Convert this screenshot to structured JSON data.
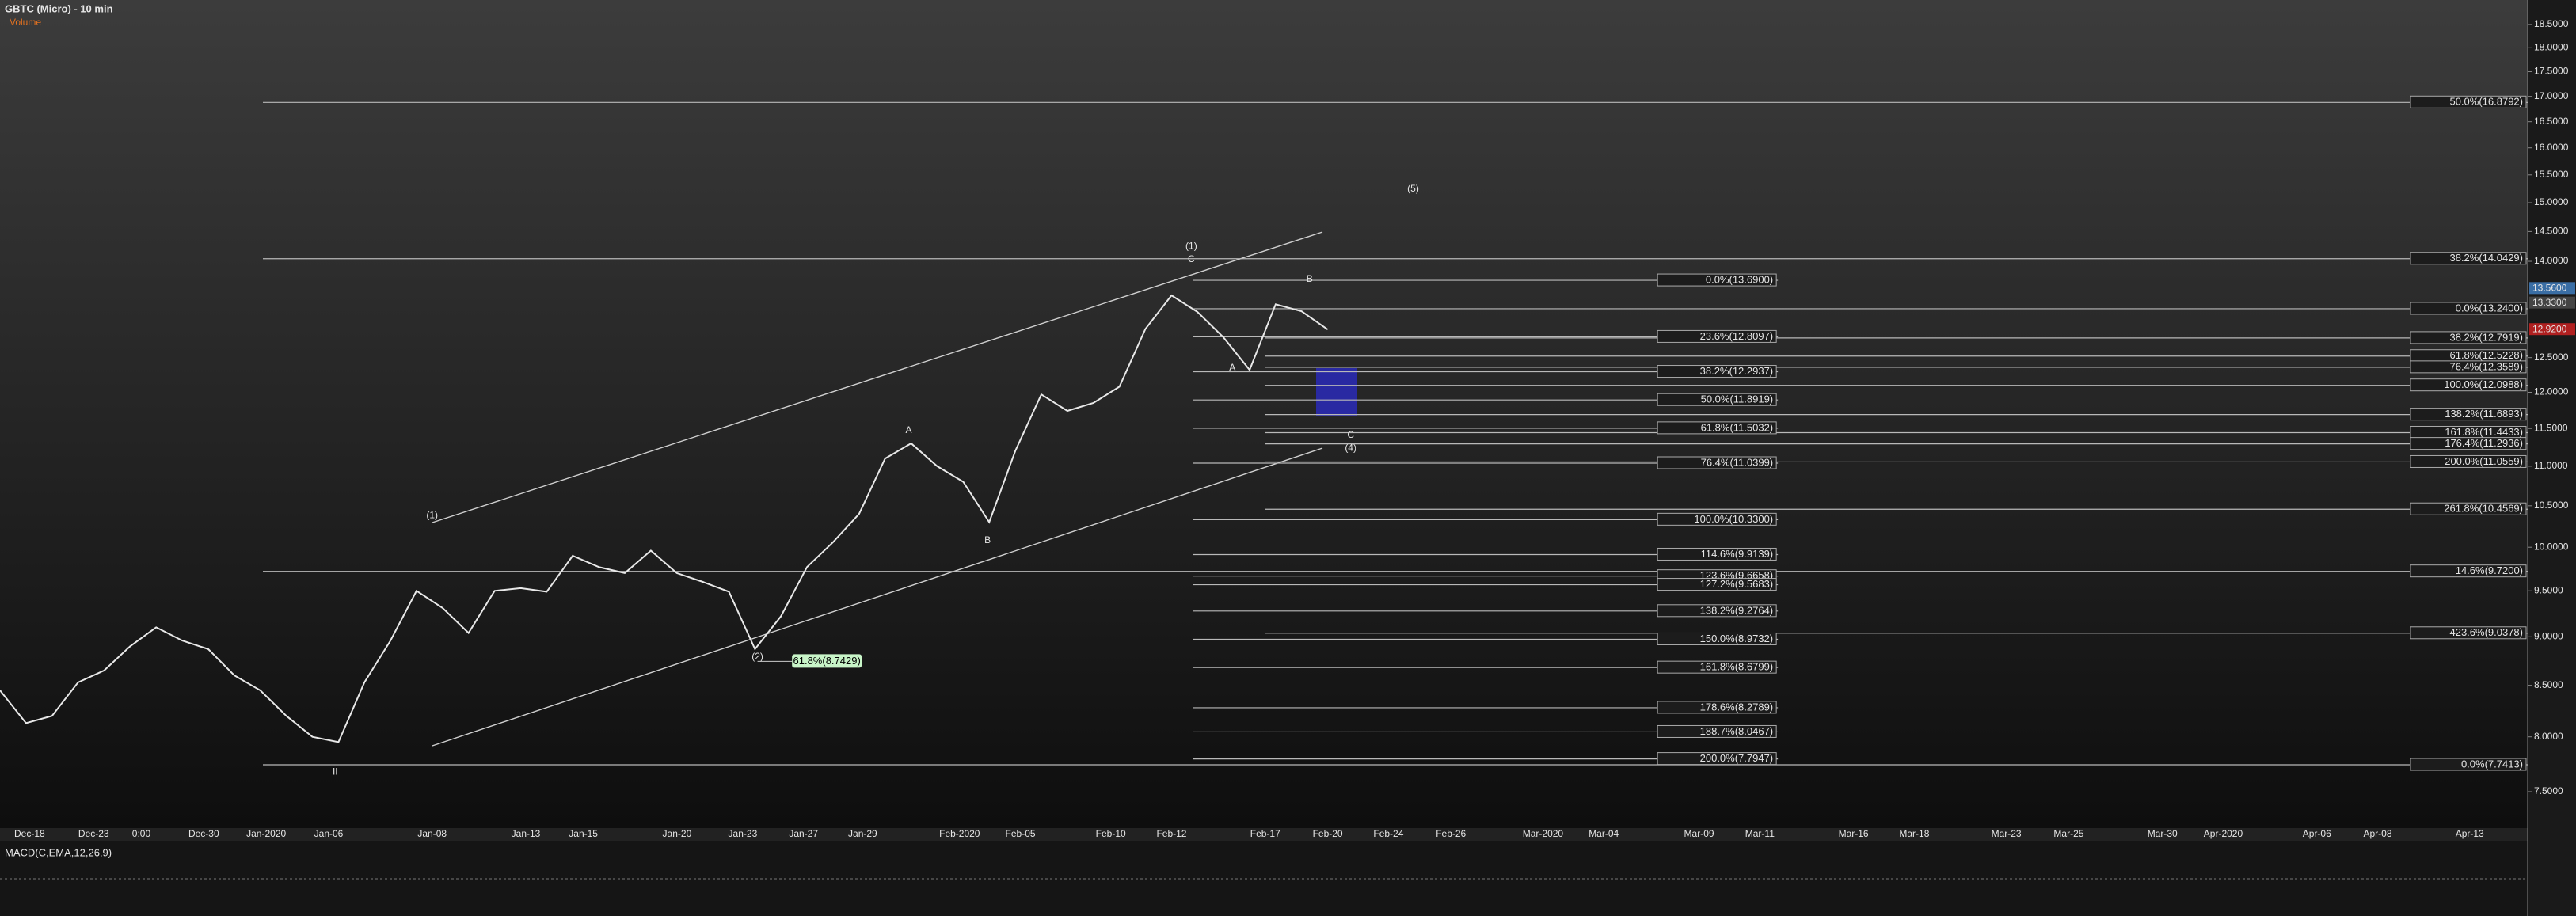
{
  "chart_data": {
    "type": "line",
    "title": "GBTC (Micro) - 10 min",
    "subtitle": "Volume",
    "macd_title": "MACD(C,EMA,12,26,9)",
    "log_scale": true,
    "ylim": [
      7.465,
      19.04
    ],
    "yticks": [
      {
        "value": 7.5,
        "label": "7.5000"
      },
      {
        "value": 8,
        "label": "8.0000"
      },
      {
        "value": 8.5,
        "label": "8.5000"
      },
      {
        "value": 9,
        "label": "9.0000"
      },
      {
        "value": 9.5,
        "label": "9.5000"
      },
      {
        "value": 10,
        "label": "10.0000"
      },
      {
        "value": 10.5,
        "label": "10.5000"
      },
      {
        "value": 11,
        "label": "11.0000"
      },
      {
        "value": 11.5,
        "label": "11.5000"
      },
      {
        "value": 12,
        "label": "12.0000"
      },
      {
        "value": 12.5,
        "label": "12.5000"
      },
      {
        "value": 14,
        "label": "14.0000"
      },
      {
        "value": 14.5,
        "label": "14.5000"
      },
      {
        "value": 15,
        "label": "15.0000"
      },
      {
        "value": 15.5,
        "label": "15.5000"
      },
      {
        "value": 16,
        "label": "16.0000"
      },
      {
        "value": 16.5,
        "label": "16.5000"
      },
      {
        "value": 17,
        "label": "17.0000"
      },
      {
        "value": 17.5,
        "label": "17.5000"
      },
      {
        "value": 18,
        "label": "18.0000"
      },
      {
        "value": 18.5,
        "label": "18.5000"
      }
    ],
    "x_labels": [
      "Dec-18",
      "Dec-23",
      "0:00",
      "Dec-30",
      "Jan-2020",
      "Jan-06",
      "Jan-08",
      "Jan-13",
      "Jan-15",
      "Jan-20",
      "Jan-23",
      "Jan-27",
      "Jan-29",
      "Feb-2020",
      "Feb-05",
      "Feb-10",
      "Feb-12",
      "Feb-17",
      "Feb-20",
      "Feb-24",
      "Feb-26",
      "Mar-2020",
      "Mar-04",
      "Mar-09",
      "Mar-11",
      "Mar-16",
      "Mar-18",
      "Mar-23",
      "Mar-25",
      "Mar-30",
      "Apr-2020",
      "Apr-06",
      "Apr-08",
      "Apr-13"
    ],
    "series": [
      {
        "name": "GBTC",
        "color": "#e8e8e8",
        "values": [
          8.45,
          8.13,
          8.2,
          8.53,
          8.65,
          8.9,
          9.1,
          8.96,
          8.87,
          8.6,
          8.45,
          8.2,
          8.0,
          7.95,
          8.53,
          8.96,
          9.5,
          9.31,
          9.04,
          9.5,
          9.53,
          9.49,
          9.9,
          9.77,
          9.7,
          9.96,
          9.7,
          9.6,
          9.49,
          8.87,
          9.22,
          9.77,
          10.06,
          10.4,
          11.1,
          11.3,
          11.0,
          10.8,
          10.3,
          11.2,
          11.97,
          11.74,
          11.85,
          12.08,
          12.93,
          13.45,
          13.19,
          12.8,
          12.32,
          13.31,
          13.2,
          12.92
        ]
      }
    ],
    "price_labels": [
      {
        "value": 13.56,
        "label": "13.5600"
      },
      {
        "value": 13.33,
        "label": "13.3300"
      },
      {
        "value": 12.92,
        "label": "12.9200"
      }
    ],
    "fib_right": [
      {
        "value": 16.8792,
        "label": "50.0%(16.8792)"
      },
      {
        "value": 14.0429,
        "label": "38.2%(14.0429)"
      },
      {
        "value": 13.24,
        "label": "0.0%(13.2400)"
      },
      {
        "value": 12.7919,
        "label": "38.2%(12.7919)"
      },
      {
        "value": 12.5228,
        "label": "61.8%(12.5228)"
      },
      {
        "value": 12.3589,
        "label": "76.4%(12.3589)"
      },
      {
        "value": 12.0988,
        "label": "100.0%(12.0988)"
      },
      {
        "value": 11.6893,
        "label": "138.2%(11.6893)"
      },
      {
        "value": 11.4433,
        "label": "161.8%(11.4433)"
      },
      {
        "value": 11.2936,
        "label": "176.4%(11.2936)"
      },
      {
        "value": 11.0559,
        "label": "200.0%(11.0559)"
      },
      {
        "value": 10.4569,
        "label": "261.8%(10.4569)"
      },
      {
        "value": 9.72,
        "label": "14.6%(9.7200)"
      },
      {
        "value": 9.0378,
        "label": "423.6%(9.0378)"
      },
      {
        "value": 7.7413,
        "label": "0.0%(7.7413)"
      }
    ],
    "fib_center": [
      {
        "value": 13.69,
        "label": "0.0%(13.6900)"
      },
      {
        "value": 12.8097,
        "label": "23.6%(12.8097)"
      },
      {
        "value": 12.2937,
        "label": "38.2%(12.2937)"
      },
      {
        "value": 11.8919,
        "label": "50.0%(11.8919)"
      },
      {
        "value": 11.5032,
        "label": "61.8%(11.5032)"
      },
      {
        "value": 11.0399,
        "label": "76.4%(11.0399)"
      },
      {
        "value": 10.33,
        "label": "100.0%(10.3300)"
      },
      {
        "value": 9.9139,
        "label": "114.6%(9.9139)"
      },
      {
        "value": 9.6658,
        "label": "123.6%(9.6658)"
      },
      {
        "value": 9.5683,
        "label": "127.2%(9.5683)"
      },
      {
        "value": 9.2764,
        "label": "138.2%(9.2764)"
      },
      {
        "value": 8.9732,
        "label": "150.0%(8.9732)"
      },
      {
        "value": 8.6799,
        "label": "161.8%(8.6799)"
      },
      {
        "value": 8.2789,
        "label": "178.6%(8.2789)"
      },
      {
        "value": 8.0467,
        "label": "188.7%(8.0467)"
      },
      {
        "value": 7.7947,
        "label": "200.0%(7.7947)"
      }
    ],
    "support_label": {
      "value": 8.7429,
      "label": "61.8%(8.7429)"
    },
    "wave_labels": [
      "(1)",
      "(2)",
      "A",
      "B",
      "C",
      "(1)",
      "A",
      "B",
      "C",
      "(4)",
      "(5)",
      "II"
    ]
  }
}
